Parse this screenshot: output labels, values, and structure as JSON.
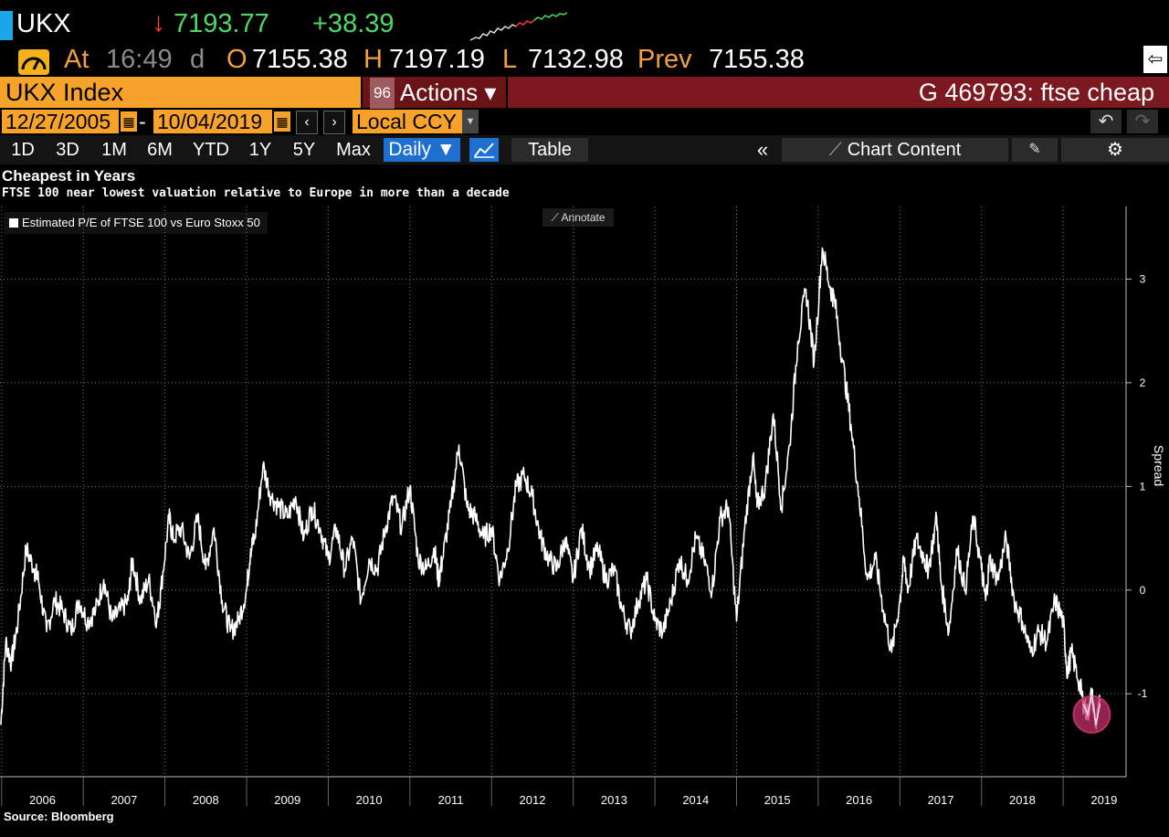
{
  "quote": {
    "ticker": "UKX",
    "direction_glyph": "↓",
    "last": "7193.77",
    "change": "+38.39",
    "at_label": "At",
    "time": "16:49",
    "time_suffix": "d",
    "open_label": "O",
    "open": "7155.38",
    "high_label": "H",
    "high": "7197.19",
    "low_label": "L",
    "low": "7132.98",
    "prev_label": "Prev",
    "prev": "7155.38"
  },
  "toolbar": {
    "security": "UKX Index",
    "actions_num": "96",
    "actions_label": "Actions ▾",
    "page_title": "G 469793: ftse cheap",
    "start_date": "12/27/2005",
    "end_date": "10/04/2019",
    "currency": "Local CCY",
    "periods": [
      "1D",
      "3D",
      "1M",
      "6M",
      "YTD",
      "1Y",
      "5Y",
      "Max"
    ],
    "frequency": "Daily ▼",
    "table_label": "Table",
    "chart_content_label": "Chart Content",
    "annotate_label": "Annotate"
  },
  "icons": {
    "export": "export-arrow-icon",
    "calendar": "calendar-icon",
    "undo": "undo-icon",
    "redo": "redo-icon",
    "line_chart": "line-chart-icon",
    "collapse": "double-chevron-left-icon",
    "edit": "pencil-icon",
    "settings": "gear-icon"
  },
  "colors": {
    "background": "#000000",
    "accent_orange": "#f7a22b",
    "title_red": "#7c1820",
    "up_green": "#4cd964",
    "down_red": "#ff3b3b",
    "line": "#ffffff",
    "highlight": "#c0306a"
  },
  "chart_data": {
    "type": "line",
    "title": "Cheapest in Years",
    "subtitle": "FTSE 100 near lowest valuation relative to Europe in more than a decade",
    "ylabel": "Spread",
    "ylim": [
      -1.8,
      3.7
    ],
    "yticks": [
      -1,
      0,
      1,
      2,
      3
    ],
    "xlim": [
      2005.98,
      2019.77
    ],
    "xticks": [
      "2006",
      "2007",
      "2008",
      "2009",
      "2010",
      "2011",
      "2012",
      "2013",
      "2014",
      "2015",
      "2016",
      "2017",
      "2018",
      "2019"
    ],
    "grid": true,
    "legend": "top-left",
    "source": "Source: Bloomberg",
    "series": [
      {
        "name": "Estimated P/E of FTSE 100 vs Euro Stoxx 50",
        "x": [
          2005.99,
          2006.05,
          2006.12,
          2006.2,
          2006.3,
          2006.4,
          2006.45,
          2006.55,
          2006.65,
          2006.75,
          2006.85,
          2006.95,
          2007.05,
          2007.15,
          2007.25,
          2007.35,
          2007.45,
          2007.55,
          2007.6,
          2007.7,
          2007.8,
          2007.9,
          2007.95,
          2008.05,
          2008.1,
          2008.2,
          2008.3,
          2008.4,
          2008.5,
          2008.6,
          2008.7,
          2008.8,
          2008.9,
          2009.0,
          2009.05,
          2009.1,
          2009.2,
          2009.3,
          2009.4,
          2009.5,
          2009.6,
          2009.7,
          2009.8,
          2009.9,
          2010.0,
          2010.1,
          2010.2,
          2010.3,
          2010.4,
          2010.5,
          2010.6,
          2010.7,
          2010.8,
          2010.9,
          2011.0,
          2011.1,
          2011.2,
          2011.3,
          2011.35,
          2011.4,
          2011.5,
          2011.6,
          2011.7,
          2011.8,
          2011.9,
          2012.0,
          2012.1,
          2012.2,
          2012.3,
          2012.4,
          2012.5,
          2012.6,
          2012.7,
          2012.8,
          2012.9,
          2013.0,
          2013.1,
          2013.2,
          2013.3,
          2013.4,
          2013.5,
          2013.6,
          2013.7,
          2013.8,
          2013.9,
          2014.0,
          2014.1,
          2014.2,
          2014.3,
          2014.4,
          2014.5,
          2014.6,
          2014.7,
          2014.8,
          2014.9,
          2015.0,
          2015.1,
          2015.2,
          2015.25,
          2015.35,
          2015.45,
          2015.55,
          2015.65,
          2015.75,
          2015.85,
          2015.95,
          2016.05,
          2016.15,
          2016.2,
          2016.3,
          2016.4,
          2016.5,
          2016.6,
          2016.7,
          2016.8,
          2016.9,
          2017.0,
          2017.05,
          2017.1,
          2017.2,
          2017.3,
          2017.35,
          2017.45,
          2017.5,
          2017.6,
          2017.7,
          2017.8,
          2017.9,
          2018.0,
          2018.05,
          2018.1,
          2018.2,
          2018.3,
          2018.4,
          2018.5,
          2018.6,
          2018.7,
          2018.8,
          2018.9,
          2019.0,
          2019.05,
          2019.1,
          2019.2,
          2019.25,
          2019.3,
          2019.35,
          2019.4,
          2019.45
        ],
        "y": [
          -1.3,
          -0.5,
          -0.7,
          -0.3,
          0.4,
          0.2,
          0.1,
          -0.4,
          -0.1,
          -0.2,
          -0.4,
          -0.1,
          -0.3,
          -0.2,
          0.1,
          -0.3,
          -0.2,
          -0.1,
          0.3,
          -0.1,
          0.1,
          -0.3,
          0.0,
          0.7,
          0.5,
          0.6,
          0.3,
          0.7,
          0.2,
          0.6,
          -0.1,
          -0.4,
          -0.3,
          0.0,
          0.4,
          0.5,
          1.2,
          0.9,
          0.8,
          0.7,
          0.9,
          0.5,
          0.8,
          0.6,
          0.3,
          0.6,
          0.2,
          0.5,
          -0.1,
          0.3,
          0.2,
          0.6,
          0.9,
          0.6,
          1.0,
          0.3,
          0.2,
          0.4,
          0.1,
          0.3,
          0.8,
          1.4,
          0.8,
          0.7,
          0.5,
          0.6,
          0.1,
          0.4,
          1.0,
          1.1,
          0.9,
          0.5,
          0.3,
          0.2,
          0.5,
          0.1,
          0.6,
          0.2,
          0.4,
          0.1,
          0.2,
          -0.2,
          -0.4,
          -0.1,
          0.1,
          -0.3,
          -0.4,
          -0.1,
          0.3,
          0.1,
          0.5,
          0.3,
          0.0,
          0.7,
          0.8,
          -0.3,
          0.6,
          1.3,
          0.8,
          1.0,
          1.7,
          0.8,
          1.4,
          2.4,
          2.9,
          2.2,
          3.3,
          2.9,
          2.8,
          2.2,
          1.6,
          0.9,
          0.1,
          0.3,
          -0.2,
          -0.6,
          -0.1,
          0.3,
          0.0,
          0.5,
          0.3,
          0.2,
          0.7,
          0.1,
          -0.4,
          0.4,
          0.0,
          0.7,
          0.2,
          -0.1,
          0.3,
          0.1,
          0.5,
          -0.1,
          -0.3,
          -0.6,
          -0.4,
          -0.5,
          -0.1,
          -0.3,
          -0.8,
          -0.6,
          -0.9,
          -1.1,
          -1.2,
          -1.0,
          -1.3,
          -1.1
        ]
      }
    ],
    "annotations": [
      {
        "type": "circle",
        "x": 2019.35,
        "y": -1.2,
        "note": ""
      }
    ]
  },
  "source_label": "Source: Bloomberg"
}
